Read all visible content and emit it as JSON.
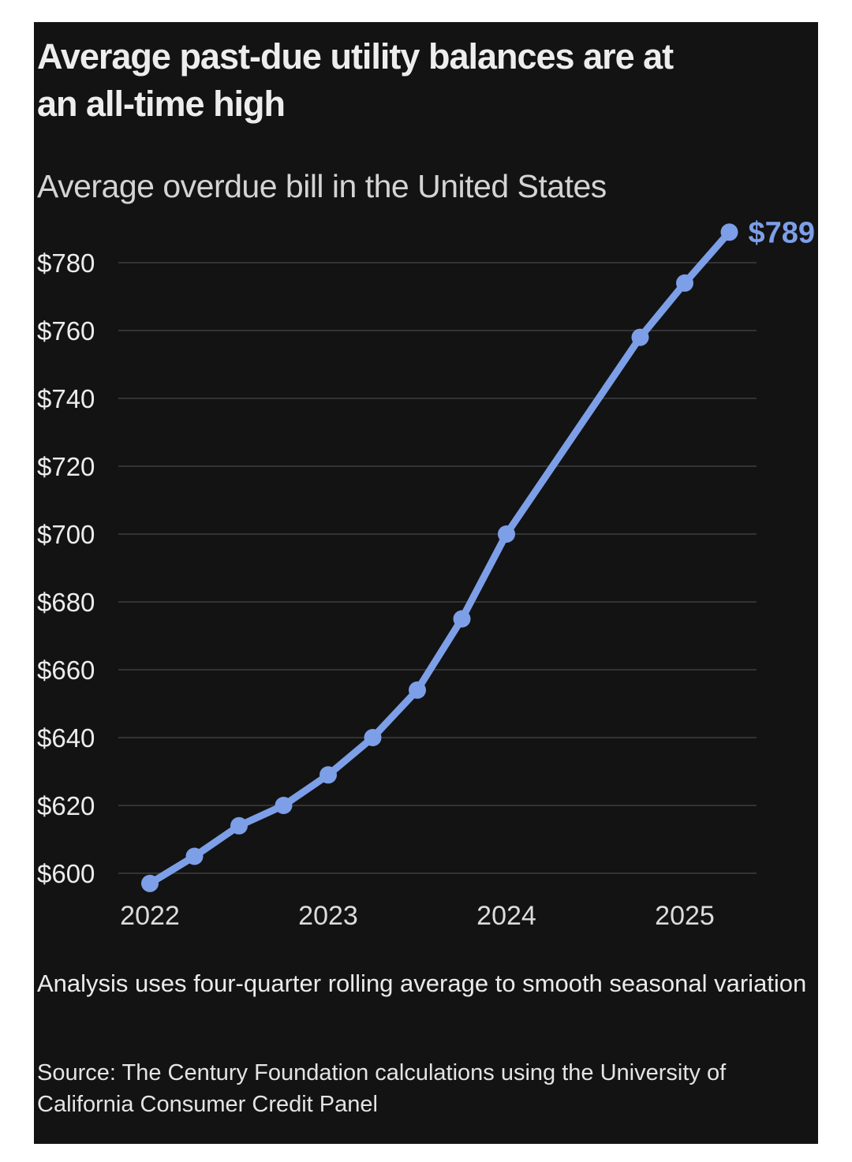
{
  "card": {
    "title_line1": "Average past-due utility balances are at",
    "title_line2": "an all-time high",
    "subtitle": "Average overdue bill in the United States",
    "note": "Analysis uses four-quarter rolling average to smooth seasonal variation",
    "source": "Source: The Century Foundation calculations using the University of California Consumer Credit Panel"
  },
  "chart_data": {
    "type": "line",
    "title": "Average past-due utility balances are at an all-time high",
    "subtitle": "Average overdue bill in the United States",
    "x": [
      2022.0,
      2022.25,
      2022.5,
      2022.75,
      2023.0,
      2023.25,
      2023.5,
      2023.75,
      2024.0,
      2024.75,
      2025.0,
      2025.25
    ],
    "x_quarters": [
      "2022 Q1",
      "2022 Q2",
      "2022 Q3",
      "2022 Q4",
      "2023 Q1",
      "2023 Q2",
      "2023 Q3",
      "2023 Q4",
      "2024 Q1",
      "2024 Q4",
      "2025 Q1",
      "2025 Q2"
    ],
    "values": [
      597,
      605,
      614,
      620,
      629,
      640,
      654,
      675,
      700,
      758,
      774,
      789
    ],
    "end_label": "$789",
    "y_ticks": [
      "$600",
      "$620",
      "$640",
      "$660",
      "$680",
      "$700",
      "$720",
      "$740",
      "$760",
      "$780"
    ],
    "y_tick_values": [
      600,
      620,
      640,
      660,
      680,
      700,
      720,
      740,
      760,
      780
    ],
    "x_ticks": [
      "2022",
      "2023",
      "2024",
      "2025"
    ],
    "x_tick_values": [
      2022,
      2023,
      2024,
      2025
    ],
    "ylim": [
      590,
      795
    ],
    "xlim": [
      2021.8,
      2025.45
    ],
    "grid": "horizontal",
    "legend": "none",
    "line_color": "#7d9fe8",
    "grid_color": "#333336",
    "tick_color": "#ececec",
    "background": "#131313",
    "outer_background": "#ffffff"
  }
}
